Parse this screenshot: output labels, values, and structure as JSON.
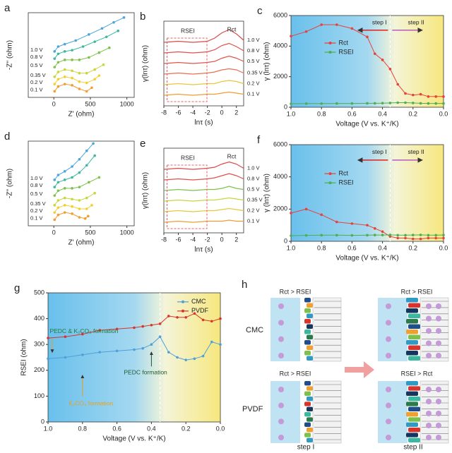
{
  "chart_data": [
    {
      "type": "line",
      "panel_label": "a",
      "xlabel": "Z' (ohm)",
      "ylabel": "-Z'' (ohm)",
      "xlim": [
        -350,
        1100
      ],
      "ylim": [
        0,
        140
      ],
      "xticks": [
        0,
        500,
        1000
      ],
      "markers": true,
      "series_labels": "left",
      "series": [
        {
          "name": "0.1 V",
          "color": "#f39c32",
          "x": [
            10,
            60,
            150,
            250,
            350,
            450,
            520
          ],
          "values": [
            10,
            18,
            22,
            20,
            14,
            10,
            16
          ]
        },
        {
          "name": "0.2 V",
          "color": "#f2cf2e",
          "x": [
            10,
            60,
            150,
            250,
            350,
            450,
            560,
            620
          ],
          "values": [
            22,
            30,
            34,
            32,
            26,
            24,
            30,
            36
          ]
        },
        {
          "name": "0.35 V",
          "color": "#c8d63a",
          "x": [
            10,
            60,
            150,
            250,
            350,
            450,
            560,
            680
          ],
          "values": [
            34,
            42,
            46,
            44,
            40,
            40,
            46,
            54
          ]
        },
        {
          "name": "0.5 V",
          "color": "#7cc24a",
          "x": [
            10,
            60,
            150,
            250,
            350,
            480,
            620,
            760
          ],
          "values": [
            50,
            58,
            62,
            62,
            62,
            66,
            74,
            82
          ]
        },
        {
          "name": "0.8 V",
          "color": "#3bb8a0",
          "x": [
            10,
            60,
            150,
            250,
            400,
            560,
            720,
            880
          ],
          "values": [
            64,
            72,
            76,
            78,
            84,
            92,
            100,
            110
          ]
        },
        {
          "name": "1.0 V",
          "color": "#4aa6dc",
          "x": [
            10,
            60,
            150,
            300,
            480,
            660,
            820,
            960
          ],
          "values": [
            76,
            84,
            88,
            94,
            104,
            114,
            124,
            132
          ]
        }
      ]
    },
    {
      "type": "line",
      "panel_label": "b",
      "xlabel": "lnτ (s)",
      "ylabel": "γ(lnτ) (ohm)",
      "xlim": [
        -8,
        3
      ],
      "ylim": [
        0,
        80
      ],
      "xticks": [
        -8,
        -6,
        -4,
        -2,
        0,
        2
      ],
      "markers": false,
      "series_labels": "right",
      "annotations": [
        "RSEI",
        "Rct"
      ],
      "series": [
        {
          "name": "0.1 V",
          "color": "#f39c32",
          "x": [
            -8,
            -6,
            -4,
            -2,
            -1,
            0,
            1,
            2,
            3
          ],
          "values": [
            10,
            11,
            10,
            11,
            11,
            12,
            13,
            12,
            11
          ]
        },
        {
          "name": "0.2 V",
          "color": "#e9c63a",
          "x": [
            -8,
            -6,
            -4,
            -2,
            -1,
            0,
            1,
            2,
            3
          ],
          "values": [
            20,
            21,
            20,
            21,
            21,
            23,
            24,
            23,
            21
          ]
        },
        {
          "name": "0.35 V",
          "color": "#e8704f",
          "x": [
            -8,
            -6,
            -4,
            -2,
            -1,
            0,
            1,
            2,
            3
          ],
          "values": [
            30,
            31,
            30,
            31,
            32,
            34,
            35,
            34,
            31
          ]
        },
        {
          "name": "0.5 V",
          "color": "#e5534b",
          "x": [
            -8,
            -6,
            -4,
            -2,
            -1,
            0,
            1,
            2,
            3
          ],
          "values": [
            40,
            41,
            40,
            41,
            42,
            45,
            47,
            45,
            42
          ]
        },
        {
          "name": "0.8 V",
          "color": "#e0504a",
          "x": [
            -8,
            -6,
            -4,
            -2,
            -1,
            0,
            1,
            2,
            3
          ],
          "values": [
            50,
            51,
            50,
            51,
            53,
            57,
            59,
            56,
            52
          ]
        },
        {
          "name": "1.0 V",
          "color": "#dc4a48",
          "x": [
            -8,
            -6,
            -4,
            -2,
            -1,
            0,
            1,
            2,
            3
          ],
          "values": [
            60,
            61,
            60,
            61,
            64,
            69,
            72,
            68,
            62
          ]
        }
      ]
    },
    {
      "type": "line",
      "panel_label": "c",
      "xlabel": "Voltage (V vs. K⁺/K)",
      "ylabel": "γ (lnτ) (ohm)",
      "xlim": [
        1.0,
        0.0
      ],
      "ylim": [
        0,
        6000
      ],
      "xticks": [
        {
          "value": 1,
          "label": "1.0"
        },
        0.8,
        0.6,
        0.4,
        0.2,
        {
          "value": 0,
          "label": "0.0"
        }
      ],
      "yticks": [
        0,
        2000,
        4000,
        6000
      ],
      "shaded": true,
      "markers": true,
      "legend": "center-left",
      "divider": 0.35,
      "annotations": [
        "step I",
        "step II"
      ],
      "x": [
        1.0,
        0.9,
        0.8,
        0.7,
        0.6,
        0.5,
        0.45,
        0.4,
        0.35,
        0.3,
        0.25,
        0.2,
        0.15,
        0.1,
        0.05,
        0.0
      ],
      "series": [
        {
          "name": "Rct",
          "color": "#e8413c",
          "values": [
            4650,
            4950,
            5400,
            5400,
            5150,
            4600,
            3500,
            3100,
            2500,
            1500,
            900,
            800,
            850,
            700,
            700,
            700
          ]
        },
        {
          "name": "RSEI",
          "color": "#4caf50",
          "values": [
            230,
            240,
            240,
            250,
            250,
            260,
            260,
            270,
            280,
            300,
            300,
            280,
            260,
            250,
            250,
            250
          ]
        }
      ]
    },
    {
      "type": "line",
      "panel_label": "d",
      "xlabel": "Z' (ohm)",
      "ylabel": "-Z'' (ohm)",
      "xlim": [
        -350,
        1100
      ],
      "ylim": [
        0,
        140
      ],
      "xticks": [
        0,
        500,
        1000
      ],
      "markers": true,
      "series_labels": "left",
      "series": [
        {
          "name": "0.1 V",
          "color": "#f39c32",
          "x": [
            10,
            60,
            150,
            250,
            350,
            430,
            470
          ],
          "values": [
            10,
            18,
            22,
            20,
            14,
            12,
            16
          ]
        },
        {
          "name": "0.2 V",
          "color": "#f2cf2e",
          "x": [
            10,
            60,
            150,
            250,
            350,
            450,
            520
          ],
          "values": [
            22,
            30,
            34,
            32,
            28,
            28,
            34
          ]
        },
        {
          "name": "0.35 V",
          "color": "#c8d63a",
          "x": [
            10,
            60,
            150,
            250,
            350,
            450,
            560
          ],
          "values": [
            34,
            42,
            46,
            44,
            42,
            46,
            54
          ]
        },
        {
          "name": "0.5 V",
          "color": "#7cc24a",
          "x": [
            10,
            60,
            150,
            250,
            350,
            480,
            620
          ],
          "values": [
            50,
            58,
            62,
            62,
            64,
            72,
            80
          ]
        },
        {
          "name": "0.8 V",
          "color": "#3bb8a0",
          "x": [
            10,
            60,
            150,
            250,
            350,
            450,
            560
          ],
          "values": [
            64,
            72,
            76,
            80,
            88,
            100,
            116
          ]
        },
        {
          "name": "1.0 V",
          "color": "#4aa6dc",
          "x": [
            10,
            60,
            150,
            250,
            350,
            450,
            540
          ],
          "values": [
            76,
            84,
            90,
            98,
            110,
            124,
            136
          ]
        }
      ]
    },
    {
      "type": "line",
      "panel_label": "e",
      "xlabel": "lnτ (s)",
      "ylabel": "γ(lnτ) (ohm)",
      "xlim": [
        -8,
        3
      ],
      "ylim": [
        0,
        80
      ],
      "xticks": [
        -8,
        -6,
        -4,
        -2,
        0,
        2
      ],
      "markers": false,
      "series_labels": "right",
      "annotations": [
        "RSEI",
        "Rct"
      ],
      "series": [
        {
          "name": "0.1 V",
          "color": "#f39c32",
          "x": [
            -8,
            -6,
            -4,
            -2,
            -1,
            0,
            1,
            2,
            3
          ],
          "values": [
            10,
            11,
            10,
            11,
            11,
            11,
            12,
            11,
            11
          ]
        },
        {
          "name": "0.2 V",
          "color": "#e9c63a",
          "x": [
            -8,
            -6,
            -4,
            -2,
            -1,
            0,
            1,
            2,
            3
          ],
          "values": [
            20,
            21,
            20,
            21,
            21,
            22,
            23,
            22,
            21
          ]
        },
        {
          "name": "0.35 V",
          "color": "#c8d63a",
          "x": [
            -8,
            -6,
            -4,
            -2,
            -1,
            0,
            1,
            2,
            3
          ],
          "values": [
            30,
            31,
            30,
            31,
            31,
            32,
            33,
            32,
            31
          ]
        },
        {
          "name": "0.5 V",
          "color": "#7cc24a",
          "x": [
            -8,
            -6,
            -4,
            -2,
            -1,
            0,
            1,
            2,
            3
          ],
          "values": [
            40,
            41,
            40,
            41,
            41,
            42,
            44,
            42,
            41
          ]
        },
        {
          "name": "0.8 V",
          "color": "#e0504a",
          "x": [
            -8,
            -6,
            -4,
            -2,
            -1,
            0,
            1,
            2,
            3
          ],
          "values": [
            50,
            51,
            50,
            51,
            52,
            54,
            56,
            54,
            51
          ]
        },
        {
          "name": "1.0 V",
          "color": "#dc4a48",
          "x": [
            -8,
            -6,
            -4,
            -2,
            -1,
            0,
            1,
            2,
            3
          ],
          "values": [
            60,
            61,
            60,
            61,
            62,
            65,
            67,
            65,
            61
          ]
        }
      ]
    },
    {
      "type": "line",
      "panel_label": "f",
      "xlabel": "Voltage (V vs. K⁺/K)",
      "ylabel": "γ (lnτ) (ohm)",
      "xlim": [
        1.0,
        0.0
      ],
      "ylim": [
        0,
        6000
      ],
      "xticks": [
        {
          "value": 1,
          "label": "1.0"
        },
        0.8,
        0.6,
        0.4,
        0.2,
        {
          "value": 0,
          "label": "0.0"
        }
      ],
      "yticks": [
        0,
        2000,
        4000,
        6000
      ],
      "shaded": true,
      "markers": true,
      "legend": "center-left",
      "divider": 0.35,
      "annotations": [
        "step I",
        "step II"
      ],
      "x": [
        1.0,
        0.9,
        0.8,
        0.7,
        0.6,
        0.5,
        0.45,
        0.4,
        0.35,
        0.3,
        0.25,
        0.2,
        0.15,
        0.1,
        0.05,
        0.0
      ],
      "series": [
        {
          "name": "Rct",
          "color": "#e8413c",
          "values": [
            1750,
            2000,
            1650,
            1200,
            1100,
            1000,
            800,
            600,
            300,
            200,
            200,
            150,
            150,
            200,
            200,
            200
          ]
        },
        {
          "name": "RSEI",
          "color": "#4caf50",
          "values": [
            350,
            370,
            380,
            380,
            370,
            380,
            390,
            390,
            400,
            380,
            380,
            390,
            400,
            380,
            380,
            390
          ]
        }
      ]
    },
    {
      "type": "line",
      "panel_label": "g",
      "xlabel": "Voltage (V vs. K⁺/K)",
      "ylabel": "RSEI (ohm)",
      "xlim": [
        1.0,
        0.0
      ],
      "ylim": [
        0,
        500
      ],
      "xticks": [
        {
          "value": 1,
          "label": "1.0"
        },
        0.8,
        0.6,
        0.4,
        0.2,
        {
          "value": 0,
          "label": "0.0"
        }
      ],
      "yticks": [
        0,
        100,
        200,
        300,
        400,
        500
      ],
      "shaded": true,
      "markers": true,
      "legend": "upper-right",
      "divider": 0.35,
      "annotations": [
        "PEDC & K₂CO₃ formation",
        "K₂CO₃ formation",
        "PEDC formation"
      ],
      "x": [
        1.0,
        0.9,
        0.8,
        0.7,
        0.6,
        0.5,
        0.45,
        0.4,
        0.35,
        0.3,
        0.25,
        0.2,
        0.15,
        0.1,
        0.05,
        0.0
      ],
      "series": [
        {
          "name": "CMC",
          "color": "#4f9fd8",
          "values": [
            245,
            250,
            260,
            270,
            275,
            280,
            285,
            300,
            330,
            270,
            250,
            240,
            245,
            255,
            310,
            300
          ]
        },
        {
          "name": "PVDF",
          "color": "#d9342b",
          "values": [
            325,
            330,
            340,
            355,
            360,
            365,
            370,
            375,
            380,
            410,
            405,
            405,
            420,
            395,
            390,
            400
          ]
        }
      ]
    }
  ],
  "diagram": {
    "panel_label": "h",
    "top_left": "Rct > RSEI",
    "top_right": "Rct > RSEI",
    "bottom_left": "Rct > RSEI",
    "bottom_right": "RSEI > Rct",
    "rows": [
      "CMC",
      "PVDF"
    ],
    "steps": [
      "step I",
      "step II"
    ]
  }
}
